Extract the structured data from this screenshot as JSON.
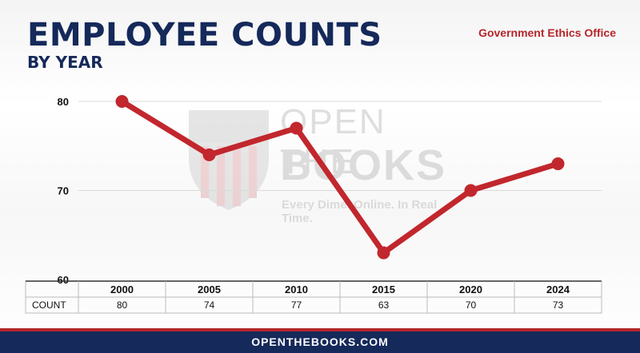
{
  "header": {
    "title": "EMPLOYEE COUNTS",
    "subtitle": "BY YEAR",
    "agency": "Government Ethics Office"
  },
  "watermark": {
    "line1": "OPEN THE",
    "line2": "BOOKS",
    "tagline": "Every Dime. Online. In Real Time."
  },
  "footer": {
    "site": "OPENTHEBOOKS.COM"
  },
  "colors": {
    "navy": "#15295a",
    "red": "#b5262b",
    "line": "#c1272d"
  },
  "chart_data": {
    "type": "line",
    "categories": [
      "2000",
      "2005",
      "2010",
      "2015",
      "2020",
      "2024"
    ],
    "values": [
      80,
      74,
      77,
      63,
      70,
      73
    ],
    "yticks": [
      60,
      70,
      80
    ],
    "ylim": [
      60,
      80
    ],
    "table_row_label": "COUNT",
    "grid": true,
    "legend": false
  }
}
